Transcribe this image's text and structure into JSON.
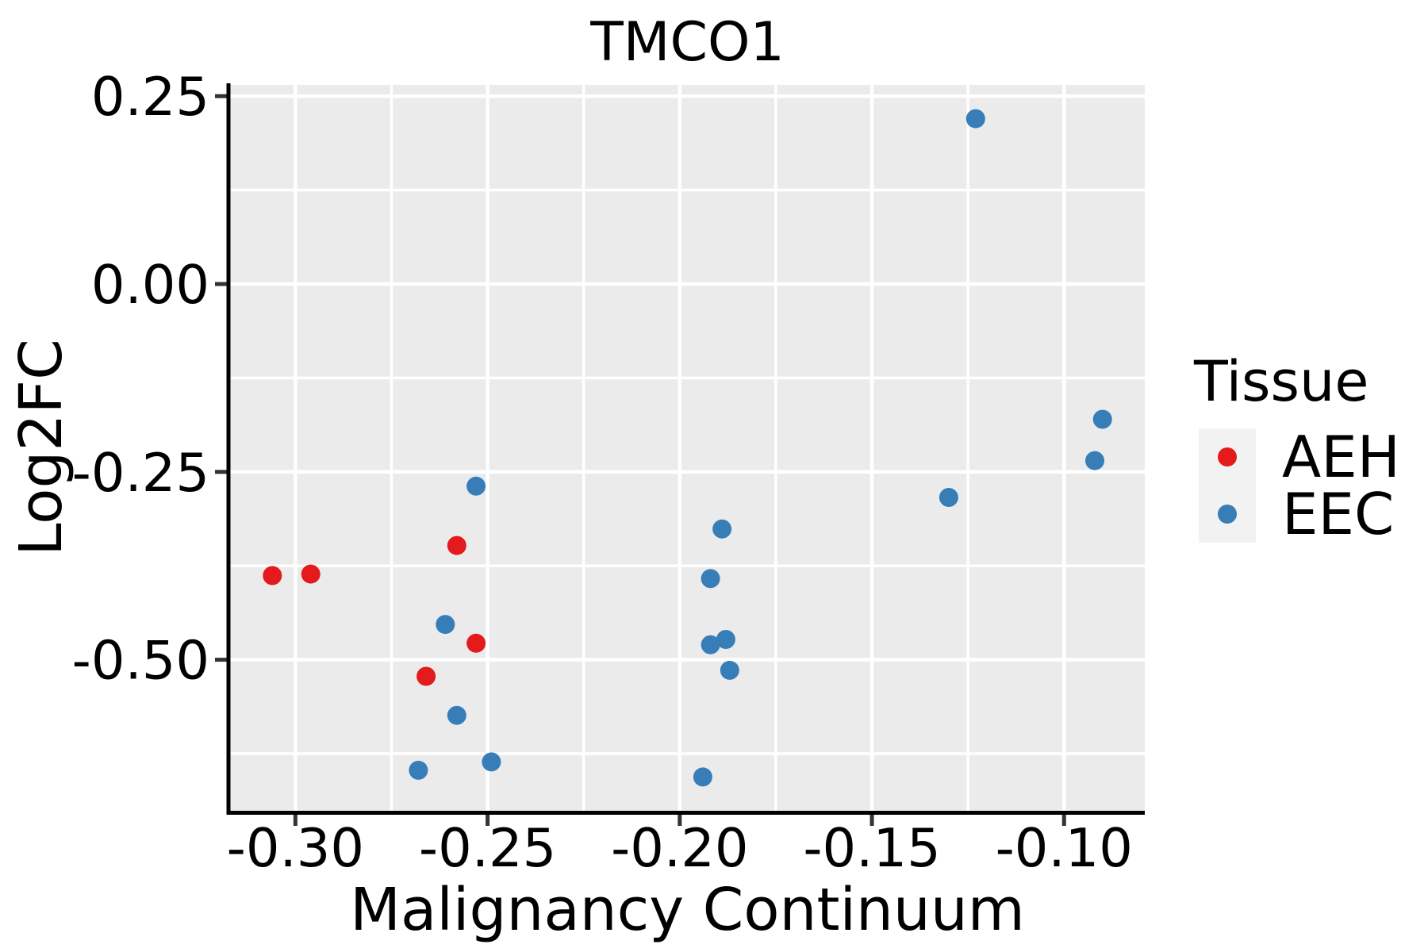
{
  "legend": {
    "title": "Tissue",
    "items": [
      {
        "label": "AEH",
        "color": "#e41a1c"
      },
      {
        "label": "EEC",
        "color": "#377eb8"
      }
    ]
  },
  "chart_data": {
    "type": "scatter",
    "title": "TMCO1",
    "xlabel": "Malignancy Continuum",
    "ylabel": "Log2FC",
    "xlim": [
      -0.317,
      -0.079
    ],
    "ylim": [
      -0.701,
      0.265
    ],
    "x_ticks": {
      "values": [
        -0.3,
        -0.25,
        -0.2,
        -0.15,
        -0.1
      ],
      "labels": [
        "-0.30",
        "-0.25",
        "-0.20",
        "-0.15",
        "-0.10"
      ]
    },
    "x_minor_ticks": [
      -0.275,
      -0.225,
      -0.175,
      -0.125
    ],
    "y_ticks": {
      "values": [
        0.25,
        0.0,
        -0.25,
        -0.5
      ],
      "labels": [
        "0.25",
        "0.00",
        "-0.25",
        "-0.50"
      ]
    },
    "y_minor_ticks": [
      0.125,
      -0.125,
      -0.375,
      -0.625
    ],
    "grid": "major+minor",
    "legend_position": "right",
    "point_radius": 12,
    "colors": {
      "panel_bg": "#ebebeb",
      "grid": "#ffffff",
      "axis": "#000000",
      "ticks": "#333333",
      "text": "#000000",
      "legend_key_bg": "#f2f2f2"
    },
    "series": [
      {
        "name": "AEH",
        "color": "#e41a1c",
        "points": [
          [
            -0.306,
            -0.388
          ],
          [
            -0.296,
            -0.386
          ],
          [
            -0.258,
            -0.348
          ],
          [
            -0.253,
            -0.478
          ],
          [
            -0.266,
            -0.522
          ]
        ]
      },
      {
        "name": "EEC",
        "color": "#377eb8",
        "points": [
          [
            -0.253,
            -0.269
          ],
          [
            -0.261,
            -0.453
          ],
          [
            -0.258,
            -0.574
          ],
          [
            -0.249,
            -0.636
          ],
          [
            -0.268,
            -0.647
          ],
          [
            -0.189,
            -0.326
          ],
          [
            -0.192,
            -0.392
          ],
          [
            -0.192,
            -0.48
          ],
          [
            -0.188,
            -0.473
          ],
          [
            -0.187,
            -0.514
          ],
          [
            -0.194,
            -0.656
          ],
          [
            -0.123,
            0.22
          ],
          [
            -0.13,
            -0.284
          ],
          [
            -0.09,
            -0.18
          ],
          [
            -0.092,
            -0.235
          ]
        ]
      }
    ]
  }
}
